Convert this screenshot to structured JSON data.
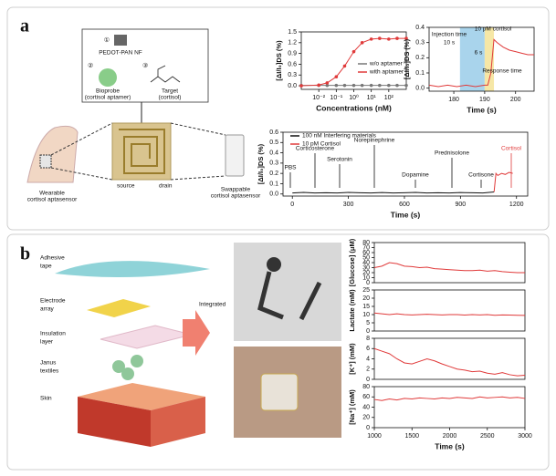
{
  "panel_labels": [
    "a",
    "b"
  ],
  "schematic_a": {
    "steps": [
      "①",
      "②",
      "③"
    ],
    "material": "PEDOT-PAN NF",
    "bioprobe": [
      "Bioprobe",
      "(cortisol aptamer)"
    ],
    "target": [
      "Target",
      "(cortisol)"
    ],
    "wearable": [
      "Wearable",
      "cortisol aptasensor"
    ],
    "source": "source",
    "drain": "drain",
    "swappable": [
      "Swappable",
      "cortisol aptasensor"
    ]
  },
  "schematic_b": {
    "layers": [
      [
        "Adhesive",
        "tape"
      ],
      [
        "Electrode",
        "array"
      ],
      [
        "Insulation",
        "layer"
      ],
      [
        "Janus",
        "textiles"
      ],
      [
        "Skin"
      ]
    ],
    "arrow": "Integrated"
  },
  "chart_data": [
    {
      "type": "line",
      "log_x": true,
      "markers": true,
      "xlabel": "Concentrations (nM)",
      "ylabel": "[ΔI/I₀]DS (%)",
      "xlim": [
        0.001,
        1000
      ],
      "xticks": [
        {
          "value": 0.01,
          "label": "10⁻²"
        },
        {
          "value": 0.1,
          "label": "10⁻¹"
        },
        {
          "value": 1,
          "label": "10⁰"
        },
        {
          "value": 10,
          "label": "10¹"
        },
        {
          "value": 100,
          "label": "10²"
        }
      ],
      "ylim": [
        -0.1,
        1.5
      ],
      "yticks": [
        {
          "value": 0,
          "label": "0.0"
        },
        0.3,
        0.6,
        0.9,
        1.2,
        1.5
      ],
      "x": [
        0.001,
        0.01,
        0.03,
        0.1,
        0.3,
        1,
        3,
        10,
        30,
        100,
        300,
        1000
      ],
      "series": [
        {
          "name": "w/o aptamer",
          "color": "#777777",
          "values": [
            0.01,
            0.01,
            0.01,
            0.01,
            0.01,
            0.01,
            0.01,
            0.01,
            0.01,
            0.01,
            0.01,
            0.01
          ]
        },
        {
          "name": "with aptamer",
          "color": "#e03a3a",
          "values": [
            0,
            0.02,
            0.08,
            0.25,
            0.55,
            0.95,
            1.2,
            1.3,
            1.32,
            1.3,
            1.32,
            1.32
          ]
        }
      ]
    },
    {
      "type": "line",
      "xlabel": "Time (s)",
      "ylabel": "[ΔI/I₀]DS (%)",
      "xlim": [
        172,
        206
      ],
      "xticks": [
        180,
        190,
        200
      ],
      "ylim": [
        -0.02,
        0.4
      ],
      "yticks": [
        {
          "value": 0,
          "label": "0.0"
        },
        0.1,
        0.2,
        0.3,
        0.4
      ],
      "highlights": [
        {
          "start": 182,
          "end": 190,
          "color": "#a9d4ec"
        },
        {
          "start": 190,
          "end": 193,
          "color": "#f6e7a6"
        }
      ],
      "annotations": [
        {
          "text": "Injection time"
        },
        {
          "text": "10 s"
        },
        {
          "text": "10 pM cortisol"
        },
        {
          "text": "Response time"
        },
        {
          "text": "6 s"
        }
      ],
      "x": [
        172,
        175,
        178,
        181,
        184,
        187,
        190,
        191,
        192,
        193,
        194,
        196,
        198,
        200,
        202,
        204,
        206
      ],
      "series": [
        {
          "color": "#e03a3a",
          "values": [
            0.02,
            0.01,
            0.02,
            0.01,
            0.02,
            0.01,
            0.02,
            0.02,
            0.1,
            0.32,
            0.3,
            0.27,
            0.25,
            0.24,
            0.23,
            0.22,
            0.22
          ]
        }
      ]
    },
    {
      "type": "line",
      "xlabel": "Time (s)",
      "ylabel": "[ΔI/I₀]DS (%)",
      "xlim": [
        -50,
        1260
      ],
      "xticks": [
        0,
        300,
        600,
        900,
        1200
      ],
      "ylim": [
        -0.02,
        0.6
      ],
      "yticks": [
        {
          "value": 0,
          "label": "0.0"
        },
        0.1,
        0.2,
        0.3,
        0.4,
        0.5,
        0.6
      ],
      "annotations": [
        {
          "text": "PBS"
        },
        {
          "text": "Corticosterone"
        },
        {
          "text": "Serotonin"
        },
        {
          "text": "Norepinephrine"
        },
        {
          "text": "Dopamine"
        },
        {
          "text": "Prednisolone"
        },
        {
          "text": "Cortisone"
        },
        {
          "text": "Cortisol",
          "color": "#e03a3a"
        }
      ],
      "x": [
        0,
        60,
        120,
        180,
        240,
        300,
        360,
        420,
        480,
        540,
        600,
        660,
        720,
        780,
        840,
        900,
        960,
        1020,
        1080,
        1090,
        1100,
        1120,
        1140,
        1160,
        1180
      ],
      "series": [
        {
          "name": "100 nM Interfering materials",
          "color": "#111111",
          "values": [
            0.01,
            0.015,
            0.01,
            0.012,
            0.01,
            0.015,
            0.012,
            0.01,
            0.014,
            0.01,
            0.012,
            0.015,
            0.01,
            0.012,
            0.01,
            0.014,
            0.012,
            0.01,
            0.02,
            null,
            null,
            null,
            null,
            null,
            null
          ]
        },
        {
          "name": "10 pM Cortisol",
          "color": "#e03a3a",
          "values": [
            null,
            null,
            null,
            null,
            null,
            null,
            null,
            null,
            null,
            null,
            null,
            null,
            null,
            null,
            null,
            null,
            null,
            null,
            0.02,
            0.2,
            0.18,
            0.2,
            0.19,
            0.21,
            0.2
          ]
        }
      ]
    },
    {
      "type": "line",
      "ylabel": "[Glucose] (μM)",
      "xlim": [
        1000,
        3000
      ],
      "ylim": [
        0,
        80
      ],
      "yticks": [
        0,
        10,
        20,
        30,
        40,
        50,
        60,
        70,
        80
      ],
      "x": [
        1000,
        1100,
        1200,
        1300,
        1400,
        1500,
        1600,
        1700,
        1800,
        1900,
        2000,
        2100,
        2200,
        2300,
        2400,
        2500,
        2600,
        2700,
        2800,
        2900,
        3000
      ],
      "series": [
        {
          "color": "#e03a3a",
          "values": [
            30,
            33,
            40,
            38,
            33,
            32,
            30,
            31,
            28,
            27,
            26,
            25,
            24,
            24,
            25,
            23,
            24,
            22,
            21,
            20,
            20
          ]
        }
      ]
    },
    {
      "type": "line",
      "ylabel": "Lactate (mM)",
      "xlim": [
        1000,
        3000
      ],
      "ylim": [
        0,
        25
      ],
      "yticks": [
        0,
        5,
        10,
        15,
        20,
        25
      ],
      "x": [
        1000,
        1100,
        1200,
        1300,
        1400,
        1500,
        1600,
        1700,
        1800,
        1900,
        2000,
        2100,
        2200,
        2300,
        2400,
        2500,
        2600,
        2700,
        2800,
        2900,
        3000
      ],
      "series": [
        {
          "color": "#e03a3a",
          "values": [
            11,
            10.5,
            10,
            10.5,
            10,
            9.8,
            10,
            10.2,
            10,
            9.8,
            10,
            10,
            9.7,
            10,
            9.8,
            10,
            9.6,
            9.8,
            9.7,
            9.6,
            9.5
          ]
        }
      ]
    },
    {
      "type": "line",
      "ylabel": "[K⁺] (mM)",
      "xlim": [
        1000,
        3000
      ],
      "ylim": [
        0,
        8
      ],
      "yticks": [
        0,
        2,
        4,
        6,
        8
      ],
      "x": [
        1000,
        1100,
        1200,
        1300,
        1400,
        1500,
        1600,
        1700,
        1800,
        1900,
        2000,
        2100,
        2200,
        2300,
        2400,
        2500,
        2600,
        2700,
        2800,
        2900,
        3000
      ],
      "series": [
        {
          "color": "#e03a3a",
          "values": [
            6,
            5.5,
            5,
            4,
            3.2,
            3,
            3.5,
            4,
            3.6,
            3,
            2.5,
            2,
            1.8,
            1.5,
            1.6,
            1.2,
            1,
            1.3,
            0.9,
            0.7,
            0.8
          ]
        }
      ]
    },
    {
      "type": "line",
      "ylabel": "[Na⁺] (mM)",
      "xlabel": "Time (s)",
      "xlim": [
        1000,
        3000
      ],
      "xticks": [
        1000,
        1500,
        2000,
        2500,
        3000
      ],
      "ylim": [
        0,
        80
      ],
      "yticks": [
        0,
        20,
        40,
        60,
        80
      ],
      "x": [
        1000,
        1100,
        1200,
        1300,
        1400,
        1500,
        1600,
        1700,
        1800,
        1900,
        2000,
        2100,
        2200,
        2300,
        2400,
        2500,
        2600,
        2700,
        2800,
        2900,
        3000
      ],
      "series": [
        {
          "color": "#e03a3a",
          "values": [
            55,
            53,
            56,
            54,
            57,
            56,
            58,
            57,
            56,
            58,
            57,
            59,
            58,
            57,
            60,
            58,
            59,
            60,
            58,
            59,
            57
          ]
        }
      ]
    }
  ]
}
